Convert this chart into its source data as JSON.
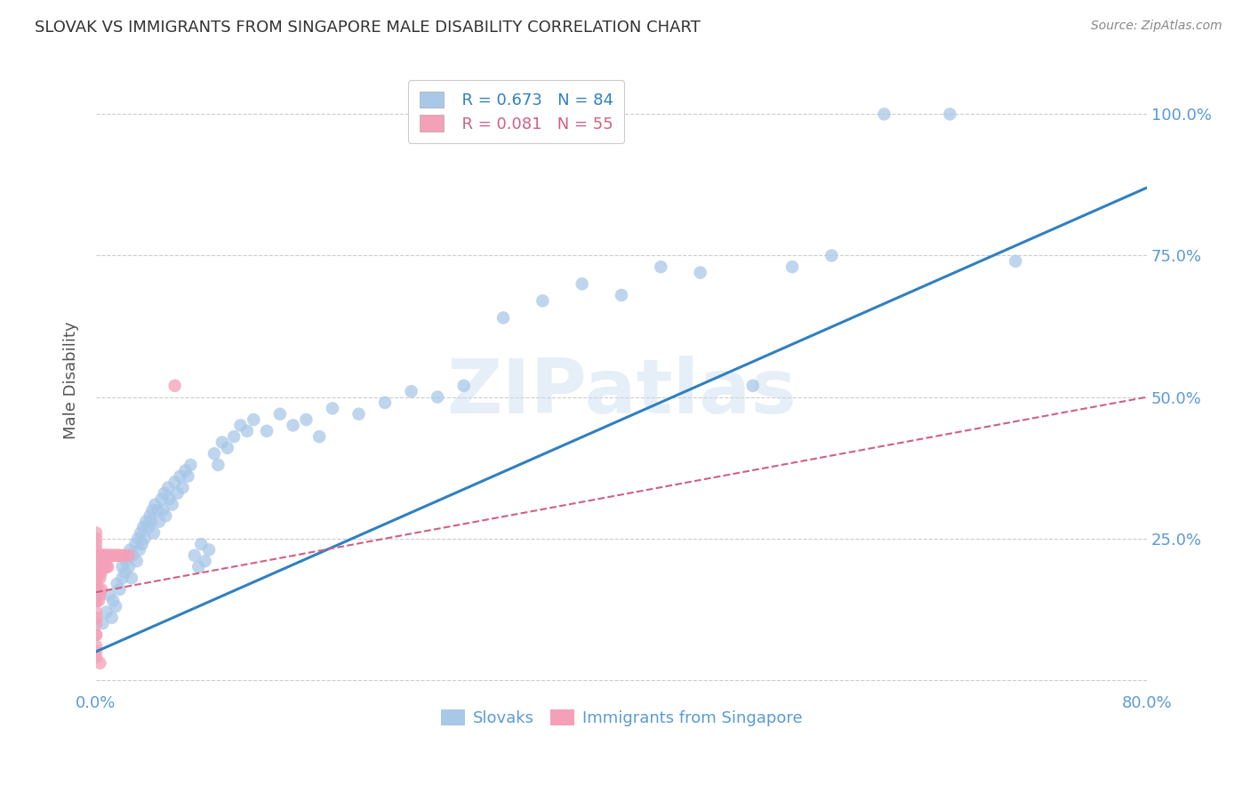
{
  "title": "SLOVAK VS IMMIGRANTS FROM SINGAPORE MALE DISABILITY CORRELATION CHART",
  "source": "Source: ZipAtlas.com",
  "ylabel": "Male Disability",
  "watermark": "ZIPatlas",
  "xlim": [
    0.0,
    0.8
  ],
  "ylim": [
    -0.02,
    1.08
  ],
  "yticks": [
    0.0,
    0.25,
    0.5,
    0.75,
    1.0
  ],
  "yticklabels": [
    "",
    "25.0%",
    "50.0%",
    "75.0%",
    "100.0%"
  ],
  "blue_R": 0.673,
  "blue_N": 84,
  "pink_R": 0.081,
  "pink_N": 55,
  "blue_color": "#a8c8e8",
  "pink_color": "#f4a0b8",
  "line_blue_color": "#3080c0",
  "line_pink_color": "#d06080",
  "axis_color": "#5b9bd5",
  "grid_color": "#cccccc",
  "blue_scatter_x": [
    0.005,
    0.008,
    0.01,
    0.012,
    0.013,
    0.015,
    0.016,
    0.018,
    0.02,
    0.02,
    0.022,
    0.023,
    0.024,
    0.025,
    0.026,
    0.027,
    0.028,
    0.03,
    0.031,
    0.032,
    0.033,
    0.034,
    0.035,
    0.036,
    0.037,
    0.038,
    0.04,
    0.041,
    0.042,
    0.043,
    0.044,
    0.045,
    0.047,
    0.048,
    0.05,
    0.051,
    0.052,
    0.053,
    0.055,
    0.056,
    0.058,
    0.06,
    0.062,
    0.064,
    0.066,
    0.068,
    0.07,
    0.072,
    0.075,
    0.078,
    0.08,
    0.083,
    0.086,
    0.09,
    0.093,
    0.096,
    0.1,
    0.105,
    0.11,
    0.115,
    0.12,
    0.13,
    0.14,
    0.15,
    0.16,
    0.17,
    0.18,
    0.2,
    0.22,
    0.24,
    0.26,
    0.28,
    0.31,
    0.34,
    0.37,
    0.4,
    0.43,
    0.46,
    0.5,
    0.53,
    0.56,
    0.6,
    0.65,
    0.7
  ],
  "blue_scatter_y": [
    0.1,
    0.12,
    0.15,
    0.11,
    0.14,
    0.13,
    0.17,
    0.16,
    0.18,
    0.2,
    0.19,
    0.21,
    0.22,
    0.2,
    0.23,
    0.18,
    0.22,
    0.24,
    0.21,
    0.25,
    0.23,
    0.26,
    0.24,
    0.27,
    0.25,
    0.28,
    0.27,
    0.29,
    0.28,
    0.3,
    0.26,
    0.31,
    0.3,
    0.28,
    0.32,
    0.3,
    0.33,
    0.29,
    0.34,
    0.32,
    0.31,
    0.35,
    0.33,
    0.36,
    0.34,
    0.37,
    0.36,
    0.38,
    0.22,
    0.2,
    0.24,
    0.21,
    0.23,
    0.4,
    0.38,
    0.42,
    0.41,
    0.43,
    0.45,
    0.44,
    0.46,
    0.44,
    0.47,
    0.45,
    0.46,
    0.43,
    0.48,
    0.47,
    0.49,
    0.51,
    0.5,
    0.52,
    0.64,
    0.67,
    0.7,
    0.68,
    0.73,
    0.72,
    0.52,
    0.73,
    0.75,
    1.0,
    1.0,
    0.74
  ],
  "pink_scatter_x": [
    0.0,
    0.0,
    0.0,
    0.0,
    0.0,
    0.0,
    0.0,
    0.0,
    0.0,
    0.0,
    0.0,
    0.0,
    0.0,
    0.0,
    0.0,
    0.0,
    0.0,
    0.0,
    0.0,
    0.0,
    0.001,
    0.001,
    0.002,
    0.002,
    0.002,
    0.003,
    0.003,
    0.003,
    0.004,
    0.004,
    0.004,
    0.005,
    0.005,
    0.006,
    0.006,
    0.007,
    0.007,
    0.008,
    0.008,
    0.009,
    0.009,
    0.01,
    0.011,
    0.012,
    0.013,
    0.014,
    0.015,
    0.016,
    0.017,
    0.018,
    0.02,
    0.022,
    0.025,
    0.06,
    0.003
  ],
  "pink_scatter_y": [
    0.04,
    0.06,
    0.08,
    0.1,
    0.12,
    0.14,
    0.16,
    0.18,
    0.2,
    0.22,
    0.24,
    0.26,
    0.05,
    0.08,
    0.11,
    0.14,
    0.17,
    0.2,
    0.23,
    0.25,
    0.18,
    0.22,
    0.2,
    0.16,
    0.14,
    0.22,
    0.18,
    0.15,
    0.22,
    0.19,
    0.16,
    0.22,
    0.2,
    0.22,
    0.2,
    0.22,
    0.2,
    0.22,
    0.2,
    0.22,
    0.2,
    0.22,
    0.22,
    0.22,
    0.22,
    0.22,
    0.22,
    0.22,
    0.22,
    0.22,
    0.22,
    0.22,
    0.22,
    0.52,
    0.03
  ],
  "blue_line_x": [
    0.0,
    0.8
  ],
  "blue_line_y": [
    0.05,
    0.87
  ],
  "pink_line_x": [
    0.0,
    0.8
  ],
  "pink_line_y": [
    0.155,
    0.5
  ]
}
